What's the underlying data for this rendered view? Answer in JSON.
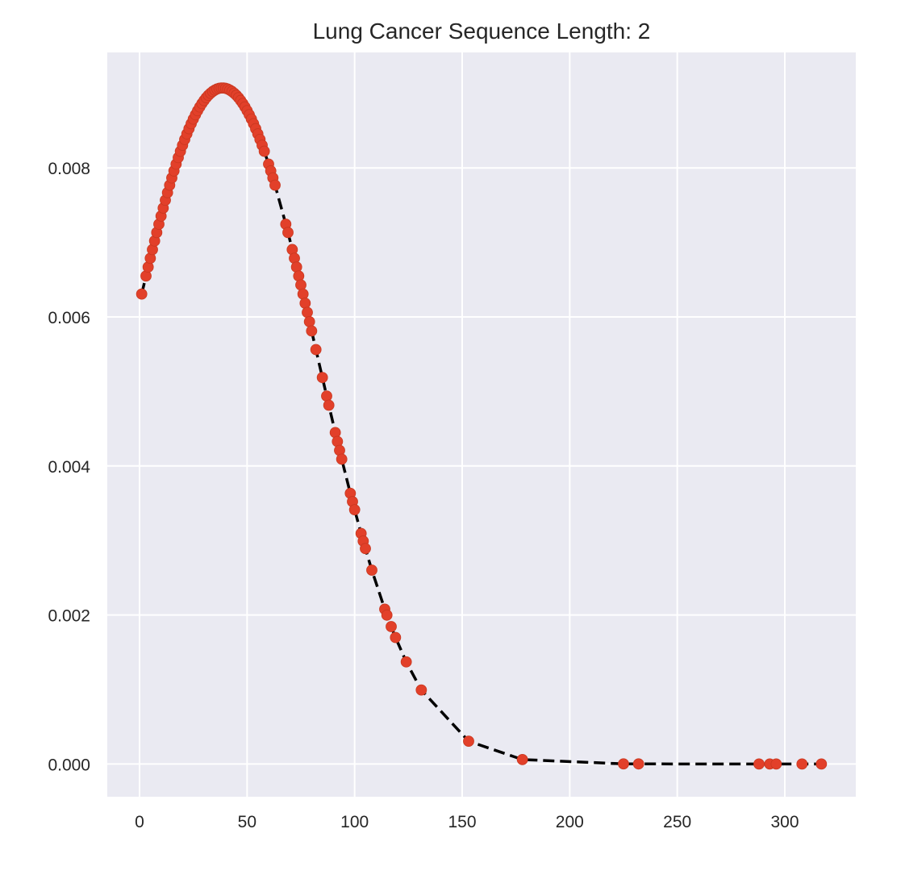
{
  "chart_data": {
    "type": "scatter",
    "title": "Lung Cancer Sequence Length: 2",
    "xlabel": "",
    "ylabel": "",
    "xlim": [
      -15,
      333
    ],
    "ylim": [
      -0.00044,
      0.00955
    ],
    "xticks": [
      0,
      50,
      100,
      150,
      200,
      250,
      300
    ],
    "yticks": [
      0.0,
      0.002,
      0.004,
      0.006,
      0.008
    ],
    "xtick_labels": [
      "0",
      "50",
      "100",
      "150",
      "200",
      "250",
      "300"
    ],
    "ytick_labels": [
      "0.000",
      "0.002",
      "0.004",
      "0.006",
      "0.008"
    ],
    "grid": true,
    "fit_line": {
      "style": "dashed",
      "color": "#000000",
      "mu": 38.5,
      "sigma": 43.97
    },
    "points_color": "#e2402a",
    "points_x": [
      1,
      3,
      4,
      5,
      6,
      7,
      8,
      9,
      10,
      11,
      12,
      13,
      14,
      15,
      16,
      17,
      18,
      19,
      20,
      21,
      22,
      23,
      24,
      25,
      26,
      27,
      28,
      29,
      30,
      31,
      32,
      33,
      34,
      35,
      36,
      37,
      38,
      39,
      40,
      41,
      42,
      43,
      44,
      45,
      46,
      47,
      48,
      49,
      50,
      51,
      52,
      53,
      54,
      55,
      56,
      57,
      58,
      60,
      61,
      62,
      63,
      68,
      69,
      71,
      72,
      73,
      74,
      75,
      76,
      77,
      78,
      79,
      80,
      82,
      85,
      87,
      88,
      91,
      92,
      93,
      94,
      98,
      99,
      100,
      103,
      104,
      105,
      108,
      114,
      115,
      117,
      119,
      124,
      131,
      153,
      178,
      225,
      232,
      288,
      293,
      296,
      308,
      317
    ]
  }
}
